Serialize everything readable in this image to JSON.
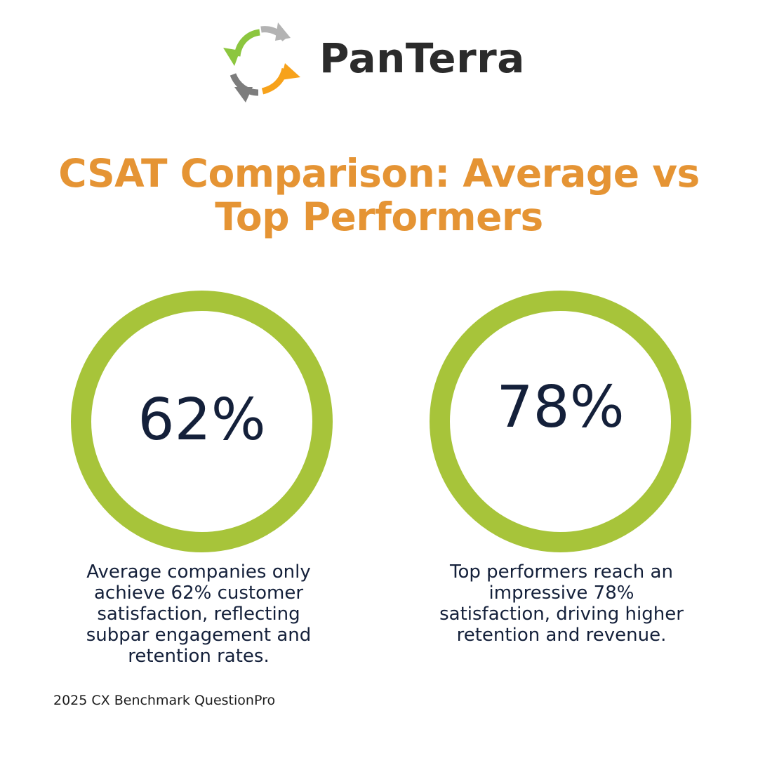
{
  "brand": {
    "name": "PanTerra",
    "logo_icon": "circular-arrows-icon",
    "colors": {
      "green": "#8bc34a",
      "orange": "#f5a623",
      "gray": "#a9a9a9",
      "text": "#2b2b2b"
    }
  },
  "title": {
    "line1": "CSAT Comparison: Average vs",
    "line2": "Top Performers"
  },
  "stats": [
    {
      "value": "62%",
      "percent": 62,
      "description": [
        "Average companies only",
        "achieve 62% customer",
        "satisfaction, reflecting",
        "subpar engagement and",
        "retention rates."
      ]
    },
    {
      "value": "78%",
      "percent": 78,
      "description": [
        "Top performers reach an",
        "impressive 78%",
        "satisfaction, driving higher",
        "retention and revenue."
      ]
    }
  ],
  "source": "2025 CX Benchmark QuestionPro",
  "colors": {
    "title": "#e59434",
    "ring": "#a7c43a",
    "value_text": "#14203a",
    "body_text": "#14203a"
  }
}
